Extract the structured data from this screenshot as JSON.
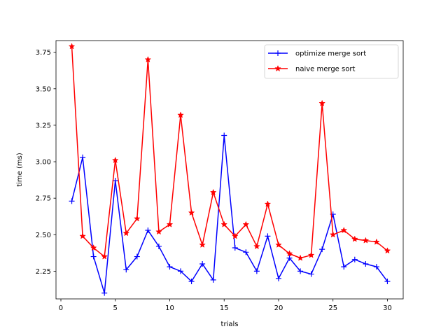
{
  "chart_data": {
    "type": "line",
    "title": "",
    "xlabel": "trials",
    "ylabel": "time (ms)",
    "xlim": [
      -0.45,
      31.45
    ],
    "ylim": [
      2.06,
      3.83
    ],
    "xticks": [
      0,
      5,
      10,
      15,
      20,
      25,
      30
    ],
    "yticks": [
      2.25,
      2.5,
      2.75,
      3.0,
      3.25,
      3.5,
      3.75
    ],
    "xtick_labels": [
      "0",
      "5",
      "10",
      "15",
      "20",
      "25",
      "30"
    ],
    "ytick_labels": [
      "2.25",
      "2.50",
      "2.75",
      "3.00",
      "3.25",
      "3.50",
      "3.75"
    ],
    "grid": false,
    "legend_position": "top-right",
    "x": [
      1,
      2,
      3,
      4,
      5,
      6,
      7,
      8,
      9,
      10,
      11,
      12,
      13,
      14,
      15,
      16,
      17,
      18,
      19,
      20,
      21,
      22,
      23,
      24,
      25,
      26,
      27,
      28,
      29,
      30
    ],
    "series": [
      {
        "name": "optimize merge sort",
        "color": "#0000ff",
        "marker": "plus",
        "values": [
          2.73,
          3.03,
          2.35,
          2.1,
          2.87,
          2.26,
          2.35,
          2.53,
          2.42,
          2.28,
          2.25,
          2.18,
          2.3,
          2.19,
          3.18,
          2.41,
          2.38,
          2.25,
          2.49,
          2.2,
          2.34,
          2.25,
          2.23,
          2.4,
          2.64,
          2.28,
          2.33,
          2.3,
          2.28,
          2.18
        ]
      },
      {
        "name": "naive merge sort",
        "color": "#ff0000",
        "marker": "star",
        "values": [
          3.79,
          2.49,
          2.41,
          2.35,
          3.01,
          2.51,
          2.61,
          3.7,
          2.52,
          2.57,
          3.32,
          2.65,
          2.43,
          2.79,
          2.57,
          2.49,
          2.57,
          2.42,
          2.71,
          2.43,
          2.37,
          2.34,
          2.36,
          3.4,
          2.5,
          2.53,
          2.47,
          2.46,
          2.45,
          2.39
        ]
      }
    ]
  }
}
